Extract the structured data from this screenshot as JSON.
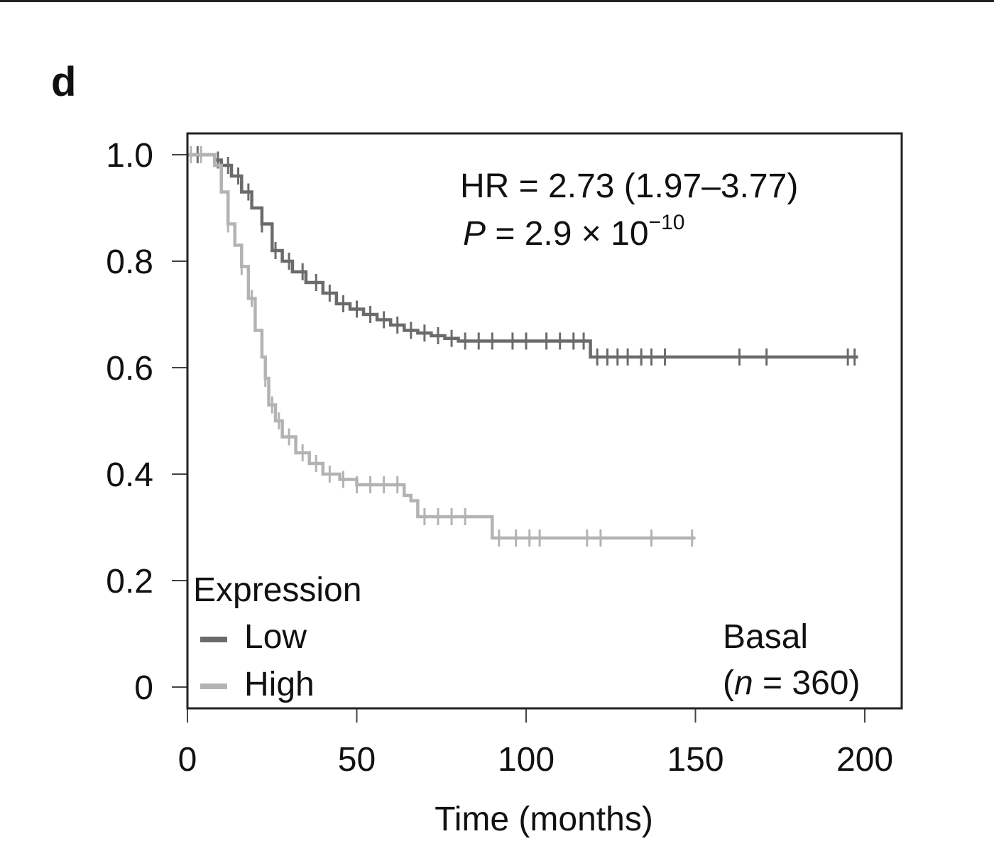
{
  "panel_label": "d",
  "chart_data": {
    "type": "line",
    "subtype": "kaplan-meier",
    "xlabel": "Time (months)",
    "ylabel": "",
    "xlim": [
      0,
      210
    ],
    "ylim": [
      0,
      1.0
    ],
    "xticks": [
      0,
      50,
      100,
      150,
      200
    ],
    "xtick_labels": [
      "0",
      "50",
      "100",
      "150",
      "200"
    ],
    "yticks": [
      0,
      0.2,
      0.4,
      0.6,
      0.8,
      1.0
    ],
    "ytick_labels": [
      "0",
      "0.2",
      "0.4",
      "0.6",
      "0.8",
      "1.0"
    ],
    "grid": false,
    "legend": {
      "title": "Expression",
      "placement": "bottom-left",
      "entries": [
        "Low",
        "High"
      ]
    },
    "annotations": {
      "hr": "HR = 2.73 (1.97–3.77)",
      "p_prefix": "P",
      "p_mid": " = 2.9 × 10",
      "p_exp": "−10",
      "subset": "Basal",
      "n_open": "(",
      "n_var": "n",
      "n_close": " = 360)"
    },
    "series": [
      {
        "name": "Low",
        "color": "#6b6b6b",
        "x": [
          0,
          5,
          8,
          10,
          13,
          16,
          19,
          22,
          25,
          28,
          31,
          35,
          40,
          44,
          48,
          52,
          56,
          60,
          64,
          68,
          72,
          76,
          80,
          85,
          90,
          100,
          110,
          118,
          119,
          125,
          140,
          160,
          180,
          198
        ],
        "y": [
          1.0,
          1.0,
          0.99,
          0.98,
          0.96,
          0.93,
          0.9,
          0.87,
          0.82,
          0.8,
          0.78,
          0.76,
          0.74,
          0.72,
          0.71,
          0.7,
          0.69,
          0.68,
          0.67,
          0.665,
          0.66,
          0.655,
          0.65,
          0.65,
          0.65,
          0.65,
          0.65,
          0.65,
          0.62,
          0.62,
          0.62,
          0.62,
          0.62,
          0.62
        ],
        "censor_x": [
          3,
          9,
          12,
          15,
          18,
          22,
          26,
          30,
          34,
          38,
          42,
          46,
          50,
          54,
          58,
          62,
          66,
          70,
          74,
          78,
          82,
          86,
          90,
          96,
          100,
          106,
          110,
          114,
          117,
          121,
          124,
          127,
          130,
          134,
          137,
          141,
          163,
          171,
          195,
          197
        ]
      },
      {
        "name": "High",
        "color": "#b3b3b3",
        "x": [
          0,
          5,
          8,
          10,
          12,
          14,
          16,
          18,
          20,
          22,
          23,
          24,
          26,
          28,
          32,
          36,
          40,
          45,
          50,
          55,
          60,
          64,
          66,
          68,
          75,
          80,
          83,
          89,
          90,
          100,
          110,
          120,
          130,
          140,
          150
        ],
        "y": [
          1.0,
          1.0,
          0.98,
          0.93,
          0.87,
          0.83,
          0.79,
          0.73,
          0.67,
          0.62,
          0.58,
          0.53,
          0.5,
          0.47,
          0.44,
          0.42,
          0.4,
          0.39,
          0.38,
          0.38,
          0.38,
          0.36,
          0.35,
          0.32,
          0.32,
          0.32,
          0.32,
          0.32,
          0.28,
          0.28,
          0.28,
          0.28,
          0.28,
          0.28,
          0.28
        ],
        "censor_x": [
          1,
          4,
          12,
          16,
          19,
          23,
          25,
          27,
          30,
          34,
          38,
          42,
          46,
          50,
          54,
          58,
          62,
          70,
          74,
          78,
          82,
          92,
          97,
          101,
          104,
          118,
          122,
          137,
          149
        ]
      }
    ]
  }
}
